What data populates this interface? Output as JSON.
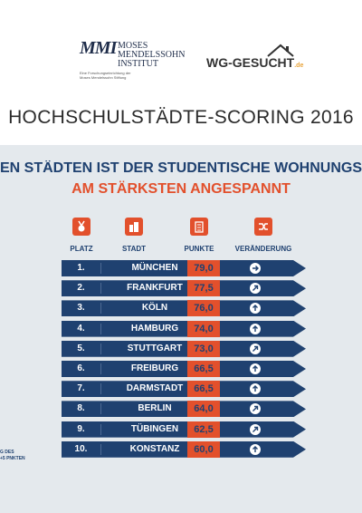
{
  "logos": {
    "mmi_mark": "MMI",
    "mmi_name": [
      "MOSES",
      "MENDELSSOHN",
      "INSTITUT"
    ],
    "mmi_sub": "Eine Forschungseinrichtung der Moses Mendelssohn Stiftung",
    "wg_name": "WG-GESUCHT",
    "wg_tld": ".de"
  },
  "title": "HOCHSCHULSTÄDTE-SCORING 2016",
  "headline": {
    "line1": "EN STÄDTEN IST DER STUDENTISCHE WOHNUNGS",
    "line2": "AM STÄRKSTEN ANGESPANNT"
  },
  "columns": {
    "platz": "PLATZ",
    "stadt": "STADT",
    "punkte": "PUNKTE",
    "veraenderung": "VERÄNDERUNG"
  },
  "rows": [
    {
      "place": "1.",
      "city": "MÜNCHEN",
      "points": "79,0",
      "change": "right"
    },
    {
      "place": "2.",
      "city": "FRANKFURT",
      "points": "77,5",
      "change": "up-right"
    },
    {
      "place": "3.",
      "city": "KÖLN",
      "points": "76,0",
      "change": "up"
    },
    {
      "place": "4.",
      "city": "HAMBURG",
      "points": "74,0",
      "change": "up"
    },
    {
      "place": "5.",
      "city": "STUTTGART",
      "points": "73,0",
      "change": "up-right"
    },
    {
      "place": "6.",
      "city": "FREIBURG",
      "points": "66,5",
      "change": "up"
    },
    {
      "place": "7.",
      "city": "DARMSTADT",
      "points": "66,5",
      "change": "up"
    },
    {
      "place": "8.",
      "city": "BERLIN",
      "points": "64,0",
      "change": "up-right"
    },
    {
      "place": "9.",
      "city": "TÜBINGEN",
      "points": "62,5",
      "change": "up-right"
    },
    {
      "place": "10.",
      "city": "KONSTANZ",
      "points": "60,0",
      "change": "up"
    }
  ],
  "footnote": [
    "G DES",
    "+5 PNKTEN"
  ],
  "colors": {
    "navy": "#1f4170",
    "accent": "#e2502c",
    "panel": "#e4e9ed"
  }
}
